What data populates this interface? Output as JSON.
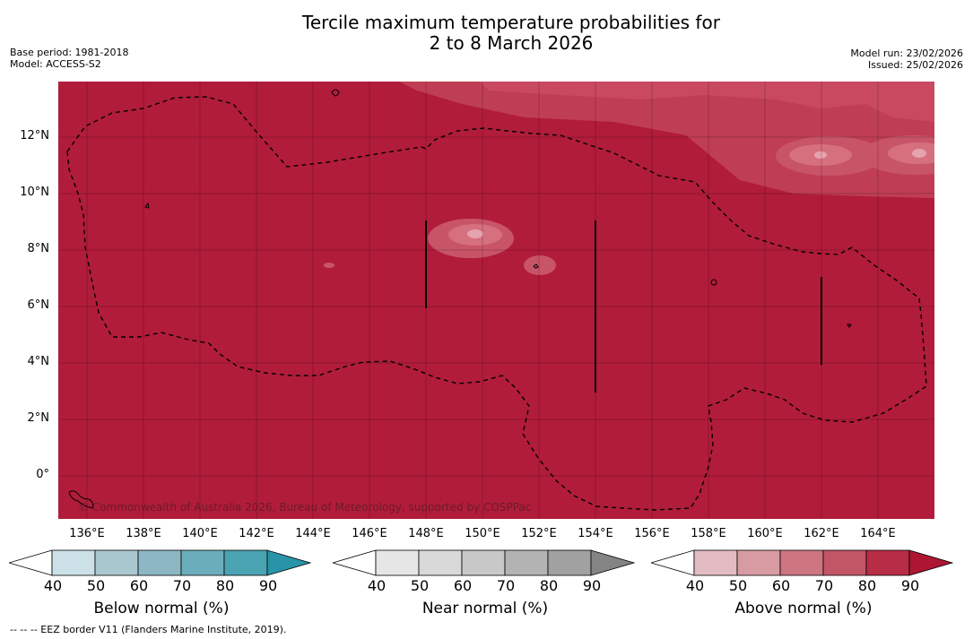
{
  "title": {
    "line1": "Tercile maximum temperature probabilities for",
    "line2": "2 to 8 March 2026"
  },
  "meta": {
    "base_period": "Base period: 1981-2018",
    "model": "Model: ACCESS-S2",
    "model_run": "Model run: 23/02/2026",
    "issued": "Issued: 25/02/2026"
  },
  "map": {
    "background_color": "#b11c3a",
    "lat_labels": [
      "12°N",
      "10°N",
      "8°N",
      "6°N",
      "4°N",
      "2°N",
      "0°"
    ],
    "lon_labels": [
      "136°E",
      "138°E",
      "140°E",
      "142°E",
      "144°E",
      "146°E",
      "148°E",
      "150°E",
      "152°E",
      "154°E",
      "156°E",
      "158°E",
      "160°E",
      "162°E",
      "164°E"
    ],
    "copyright": "© Commonwealth of Australia 2026, Bureau of Meteorology, supported by COSPPac"
  },
  "colorbars": [
    {
      "id": "below",
      "title": "Below normal (%)",
      "ticks": [
        "40",
        "50",
        "60",
        "70",
        "80",
        "90"
      ],
      "colors": [
        "#ffffff",
        "#cbe1e7",
        "#a9c7cf",
        "#8db7c2",
        "#6cadbb",
        "#4aa3b3",
        "#2993a8"
      ]
    },
    {
      "id": "near",
      "title": "Near normal (%)",
      "ticks": [
        "40",
        "50",
        "60",
        "70",
        "80",
        "90"
      ],
      "colors": [
        "#ffffff",
        "#e6e6e6",
        "#d9d9d9",
        "#c8c8c8",
        "#b3b3b3",
        "#a1a1a1",
        "#848484"
      ]
    },
    {
      "id": "above",
      "title": "Above normal (%)",
      "ticks": [
        "40",
        "50",
        "60",
        "70",
        "80",
        "90"
      ],
      "colors": [
        "#ffffff",
        "#e2bcc2",
        "#d89ba3",
        "#cd7580",
        "#c25667",
        "#b62d45",
        "#ad1633"
      ]
    }
  ],
  "footer": "--  --  -- EEZ border V11 (Flanders Marine Institute, 2019)."
}
